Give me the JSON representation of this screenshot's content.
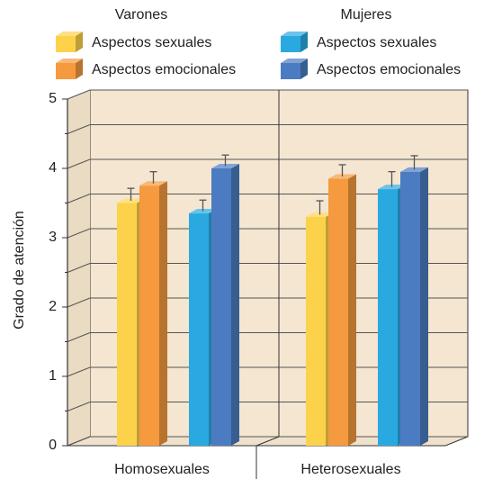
{
  "chart_data": {
    "type": "bar3d",
    "y_label": "Grado de atención",
    "legend_titles": [
      "Varones",
      "Mujeres"
    ],
    "categories": [
      "Homosexuales",
      "Heterosexuales"
    ],
    "series": [
      {
        "name": "Aspectos sexuales",
        "color": "#fdd24b",
        "values": [
          3.5,
          3.3
        ],
        "errors": [
          0.18,
          0.2
        ]
      },
      {
        "name": "Aspectos emocionales",
        "color": "#f59a3e",
        "values": [
          3.75,
          3.85
        ],
        "errors": [
          0.17,
          0.17
        ]
      },
      {
        "name": "Aspectos sexuales",
        "color": "#2aa9e1",
        "values": [
          3.35,
          3.7
        ],
        "errors": [
          0.16,
          0.22
        ]
      },
      {
        "name": "Aspectos emocionales",
        "color": "#4b7cc1",
        "values": [
          4.0,
          3.95
        ],
        "errors": [
          0.16,
          0.2
        ]
      }
    ],
    "ylim": [
      0,
      5
    ],
    "yticks": [
      0,
      1,
      2,
      3,
      4,
      5
    ],
    "yticks_minor": [
      0.5,
      1.5,
      2.5,
      3.5,
      4.5
    ],
    "grid": true
  }
}
